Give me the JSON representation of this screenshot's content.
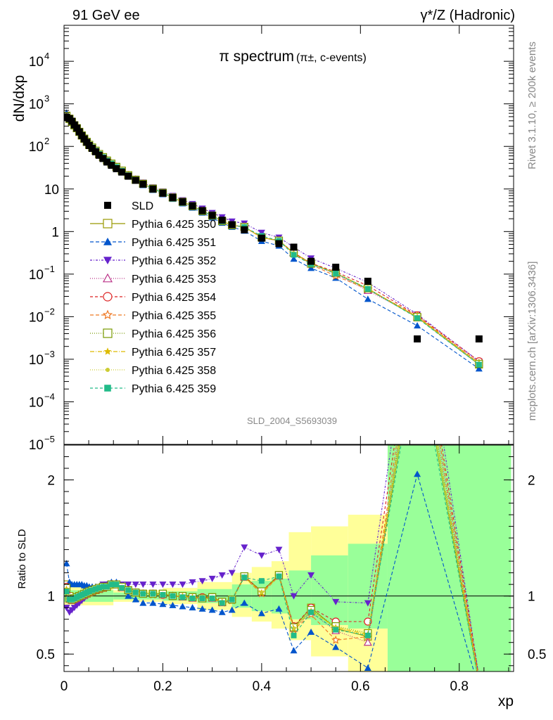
{
  "header": {
    "left": "91 GeV ee",
    "right": "γ*/Z (Hadronic)"
  },
  "side_text": {
    "top": "Rivet 3.1.10, ≥ 200k events",
    "bottom": "mcplots.cern.ch [arXiv:1306.3436]"
  },
  "chart_data": {
    "type": "scatter",
    "title": "π spectrum",
    "title_sub": "(π±, c-events)",
    "watermark": "SLD_2004_S5693039",
    "ylabel_main": "dN/dxp",
    "ylabel_ratio": "Ratio to SLD",
    "xlabel": "xp",
    "xlim": [
      0,
      0.91
    ],
    "ylim_main": [
      1e-05,
      70000
    ],
    "ylim_ratio": [
      0.35,
      2.3
    ],
    "yscale_main": "log",
    "x_ticks": [
      0,
      0.2,
      0.4,
      0.6,
      0.8
    ],
    "x_tick_labels": [
      "0",
      "0.2",
      "0.4",
      "0.6",
      "0.8"
    ],
    "y_ticks_main": [
      {
        "v": 10000,
        "base": "10",
        "exp": "4"
      },
      {
        "v": 1000,
        "base": "10",
        "exp": "3"
      },
      {
        "v": 100,
        "base": "10",
        "exp": "2"
      },
      {
        "v": 10,
        "base": "10",
        "exp": ""
      },
      {
        "v": 1,
        "base": "1",
        "exp": ""
      },
      {
        "v": 0.1,
        "base": "10",
        "exp": "−1"
      },
      {
        "v": 0.01,
        "base": "10",
        "exp": "−2"
      },
      {
        "v": 0.001,
        "base": "10",
        "exp": "−3"
      },
      {
        "v": 0.0001,
        "base": "10",
        "exp": "−4"
      },
      {
        "v": 1e-05,
        "base": "10",
        "exp": "−5"
      }
    ],
    "y_ticks_ratio": [
      {
        "v": 0.5,
        "label": "0.5"
      },
      {
        "v": 1,
        "label": "1"
      },
      {
        "v": 2,
        "label": "2"
      }
    ],
    "legend_position": "middle-left",
    "x": [
      0.005,
      0.011,
      0.016,
      0.021,
      0.026,
      0.031,
      0.036,
      0.041,
      0.046,
      0.051,
      0.057,
      0.064,
      0.071,
      0.079,
      0.087,
      0.096,
      0.106,
      0.117,
      0.13,
      0.145,
      0.16,
      0.18,
      0.2,
      0.22,
      0.24,
      0.26,
      0.28,
      0.3,
      0.32,
      0.34,
      0.365,
      0.4,
      0.435,
      0.465,
      0.5,
      0.55,
      0.615,
      0.715,
      0.84
    ],
    "data": {
      "name": "SLD",
      "color": "#000000",
      "values": [
        480,
        450,
        390,
        320,
        270,
        220,
        180,
        150,
        125,
        105,
        90,
        75,
        62,
        52,
        43,
        36,
        30,
        25,
        20,
        16,
        13,
        10,
        8,
        6.3,
        5,
        4,
        3.1,
        2.4,
        1.85,
        1.45,
        1.1,
        0.7,
        0.52,
        0.43,
        0.2,
        0.145,
        0.068,
        0.003,
        0.003
      ]
    },
    "band_ratio": [
      {
        "x0": 0.0,
        "x1": 0.1,
        "y_lo": 0.92,
        "y_hi": 1.08,
        "color": "#ffff99"
      },
      {
        "x0": 0.0,
        "x1": 0.1,
        "y_lo": 0.95,
        "y_hi": 1.05,
        "color": "#99ff99"
      },
      {
        "x0": 0.1,
        "x1": 0.2,
        "y_lo": 0.95,
        "y_hi": 1.05,
        "color": "#ffff99"
      },
      {
        "x0": 0.1,
        "x1": 0.2,
        "y_lo": 0.97,
        "y_hi": 1.03,
        "color": "#99ff99"
      },
      {
        "x0": 0.2,
        "x1": 0.27,
        "y_lo": 0.93,
        "y_hi": 1.07,
        "color": "#ffff99"
      },
      {
        "x0": 0.2,
        "x1": 0.27,
        "y_lo": 0.96,
        "y_hi": 1.04,
        "color": "#99ff99"
      },
      {
        "x0": 0.27,
        "x1": 0.34,
        "y_lo": 0.88,
        "y_hi": 1.12,
        "color": "#ffff99"
      },
      {
        "x0": 0.27,
        "x1": 0.34,
        "y_lo": 0.94,
        "y_hi": 1.06,
        "color": "#99ff99"
      },
      {
        "x0": 0.34,
        "x1": 0.38,
        "y_lo": 0.82,
        "y_hi": 1.2,
        "color": "#ffff99"
      },
      {
        "x0": 0.34,
        "x1": 0.38,
        "y_lo": 0.9,
        "y_hi": 1.1,
        "color": "#99ff99"
      },
      {
        "x0": 0.38,
        "x1": 0.42,
        "y_lo": 0.78,
        "y_hi": 1.25,
        "color": "#ffff99"
      },
      {
        "x0": 0.38,
        "x1": 0.42,
        "y_lo": 0.87,
        "y_hi": 1.13,
        "color": "#99ff99"
      },
      {
        "x0": 0.42,
        "x1": 0.455,
        "y_lo": 0.72,
        "y_hi": 1.3,
        "color": "#ffff99"
      },
      {
        "x0": 0.42,
        "x1": 0.455,
        "y_lo": 0.85,
        "y_hi": 1.15,
        "color": "#99ff99"
      },
      {
        "x0": 0.455,
        "x1": 0.5,
        "y_lo": 0.62,
        "y_hi": 1.55,
        "color": "#ffff99"
      },
      {
        "x0": 0.455,
        "x1": 0.5,
        "y_lo": 0.8,
        "y_hi": 1.22,
        "color": "#99ff99"
      },
      {
        "x0": 0.5,
        "x1": 0.575,
        "y_lo": 0.48,
        "y_hi": 1.6,
        "color": "#ffff99"
      },
      {
        "x0": 0.5,
        "x1": 0.575,
        "y_lo": 0.75,
        "y_hi": 1.35,
        "color": "#99ff99"
      },
      {
        "x0": 0.575,
        "x1": 0.655,
        "y_lo": 0.35,
        "y_hi": 1.7,
        "color": "#ffff99"
      },
      {
        "x0": 0.575,
        "x1": 0.655,
        "y_lo": 0.72,
        "y_hi": 1.45,
        "color": "#99ff99"
      },
      {
        "x0": 0.655,
        "x1": 0.905,
        "y_lo": 0.35,
        "y_hi": 2.3,
        "color": "#99ff99"
      }
    ],
    "series": [
      {
        "name": "Pythia 6.425 350",
        "color": "#999900",
        "marker": "square-open",
        "dash": "",
        "ratio": [
          1.1,
          1.0,
          0.97,
          0.98,
          0.99,
          1.0,
          1.0,
          1.01,
          1.02,
          1.03,
          1.04,
          1.05,
          1.06,
          1.07,
          1.08,
          1.1,
          1.1,
          1.08,
          1.05,
          1.03,
          1.02,
          1.02,
          1.02,
          1.0,
          1.0,
          0.99,
          0.98,
          0.99,
          0.95,
          0.97,
          1.17,
          1.04,
          1.18,
          0.73,
          0.9,
          0.72,
          0.65,
          3.2,
          0.25
        ]
      },
      {
        "name": "Pythia 6.425 351",
        "color": "#0055cc",
        "marker": "triangle-up",
        "dash": "5,3",
        "ratio": [
          1.28,
          1.12,
          1.1,
          1.1,
          1.1,
          1.1,
          1.1,
          1.09,
          1.09,
          1.08,
          1.08,
          1.08,
          1.08,
          1.08,
          1.1,
          1.12,
          1.12,
          1.08,
          1.0,
          0.97,
          0.94,
          0.94,
          0.93,
          0.92,
          0.91,
          0.9,
          0.89,
          0.88,
          0.86,
          0.88,
          0.94,
          0.85,
          0.89,
          0.53,
          0.69,
          0.56,
          0.38,
          2.05,
          0.2
        ]
      },
      {
        "name": "Pythia 6.425 352",
        "color": "#6622cc",
        "marker": "triangle-down",
        "dash": "3,2,1,2",
        "ratio": [
          0.9,
          0.86,
          0.88,
          0.9,
          0.92,
          0.94,
          0.96,
          0.98,
          1.0,
          1.02,
          1.04,
          1.06,
          1.08,
          1.1,
          1.1,
          1.1,
          1.1,
          1.1,
          1.1,
          1.1,
          1.1,
          1.1,
          1.1,
          1.1,
          1.1,
          1.12,
          1.13,
          1.15,
          1.18,
          1.2,
          1.42,
          1.35,
          1.4,
          1.0,
          1.18,
          0.95,
          0.94,
          3.8,
          0.3
        ]
      },
      {
        "name": "Pythia 6.425 353",
        "color": "#bb3388",
        "marker": "triangle-open",
        "dash": "1,2",
        "ratio": [
          1.05,
          0.97,
          0.96,
          0.97,
          0.98,
          0.99,
          1.0,
          1.01,
          1.02,
          1.03,
          1.04,
          1.05,
          1.06,
          1.07,
          1.08,
          1.1,
          1.1,
          1.07,
          1.05,
          1.03,
          1.02,
          1.02,
          1.01,
          1.0,
          0.99,
          0.98,
          0.98,
          0.98,
          0.94,
          0.97,
          1.16,
          1.03,
          1.17,
          0.72,
          0.86,
          0.7,
          0.6,
          3.4,
          0.28
        ]
      },
      {
        "name": "Pythia 6.425 354",
        "color": "#dd2222",
        "marker": "circle-open",
        "dash": "4,3",
        "ratio": [
          1.08,
          0.98,
          0.97,
          0.98,
          0.99,
          1.0,
          1.01,
          1.02,
          1.03,
          1.04,
          1.05,
          1.06,
          1.07,
          1.08,
          1.08,
          1.1,
          1.1,
          1.08,
          1.05,
          1.03,
          1.02,
          1.02,
          1.01,
          1.0,
          1.0,
          0.99,
          0.99,
          0.99,
          0.95,
          0.97,
          1.17,
          1.04,
          1.18,
          0.74,
          0.9,
          0.78,
          0.78,
          3.6,
          0.3
        ]
      },
      {
        "name": "Pythia 6.425 355",
        "color": "#ee7722",
        "marker": "star-open",
        "dash": "5,3",
        "ratio": [
          1.06,
          0.97,
          0.96,
          0.97,
          0.98,
          0.99,
          1.0,
          1.01,
          1.02,
          1.03,
          1.04,
          1.05,
          1.06,
          1.07,
          1.08,
          1.1,
          1.1,
          1.07,
          1.04,
          1.03,
          1.02,
          1.01,
          1.01,
          1.0,
          0.99,
          0.98,
          0.98,
          0.98,
          0.94,
          0.96,
          1.16,
          1.02,
          1.17,
          0.71,
          0.84,
          0.62,
          0.65,
          3.5,
          0.27
        ]
      },
      {
        "name": "Pythia 6.425 356",
        "color": "#779900",
        "marker": "square-open",
        "dash": "1,2",
        "ratio": [
          1.07,
          0.98,
          0.97,
          0.98,
          0.99,
          1.0,
          1.01,
          1.02,
          1.03,
          1.04,
          1.05,
          1.06,
          1.07,
          1.08,
          1.08,
          1.1,
          1.1,
          1.08,
          1.05,
          1.03,
          1.02,
          1.02,
          1.02,
          1.0,
          1.0,
          0.99,
          0.98,
          0.99,
          0.95,
          0.97,
          1.17,
          1.04,
          1.18,
          0.73,
          0.88,
          0.74,
          0.68,
          3.3,
          0.26
        ]
      },
      {
        "name": "Pythia 6.425 357",
        "color": "#ddbb00",
        "marker": "star-small",
        "dash": "6,2,1,2",
        "ratio": [
          1.06,
          0.97,
          0.97,
          0.98,
          0.99,
          1.0,
          1.01,
          1.02,
          1.03,
          1.04,
          1.05,
          1.06,
          1.07,
          1.08,
          1.08,
          1.1,
          1.1,
          1.07,
          1.05,
          1.03,
          1.02,
          1.02,
          1.01,
          1.0,
          1.0,
          0.99,
          0.98,
          0.98,
          0.95,
          0.97,
          1.16,
          1.03,
          1.17,
          0.72,
          0.87,
          0.73,
          0.67,
          3.3,
          0.27
        ]
      },
      {
        "name": "Pythia 6.425 358",
        "color": "#cccc33",
        "marker": "dot",
        "dash": "1,2",
        "ratio": [
          1.05,
          0.97,
          0.97,
          0.98,
          0.99,
          1.0,
          1.01,
          1.02,
          1.03,
          1.04,
          1.05,
          1.06,
          1.07,
          1.08,
          1.08,
          1.1,
          1.1,
          1.07,
          1.05,
          1.03,
          1.02,
          1.02,
          1.01,
          1.0,
          1.0,
          0.99,
          0.98,
          0.98,
          0.95,
          0.97,
          1.16,
          1.03,
          1.17,
          0.72,
          0.87,
          0.73,
          0.66,
          3.2,
          0.26
        ]
      },
      {
        "name": "Pythia 6.425 359",
        "color": "#22bb88",
        "marker": "square-filled",
        "dash": "4,3",
        "ratio": [
          1.04,
          0.97,
          0.97,
          0.98,
          0.99,
          1.0,
          1.01,
          1.02,
          1.03,
          1.04,
          1.05,
          1.06,
          1.07,
          1.08,
          1.08,
          1.1,
          1.1,
          1.07,
          1.05,
          1.03,
          1.02,
          1.02,
          1.01,
          1.0,
          0.99,
          0.98,
          0.98,
          0.98,
          0.94,
          0.97,
          1.16,
          1.13,
          1.17,
          0.66,
          0.86,
          0.71,
          0.66,
          3.1,
          0.25
        ]
      }
    ]
  }
}
